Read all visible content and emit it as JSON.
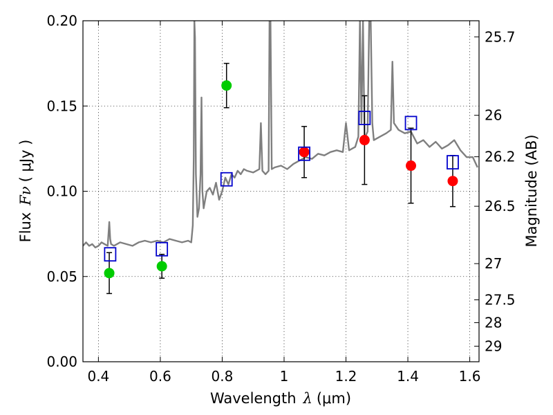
{
  "chart_data": {
    "type": "scatter",
    "title": "",
    "xlabel_text": "Wavelength",
    "xlabel_symbol": "λ",
    "xlabel_unit": "(μm)",
    "ylabel_text": "Flux",
    "ylabel_symbol": "Fν",
    "ylabel_unit": "( μJy )",
    "y2label": "Magnitude (AB)",
    "xlim": [
      0.35,
      1.63
    ],
    "ylim": [
      0.0,
      0.2
    ],
    "xticks": [
      {
        "value": 0.4,
        "label": "0.4"
      },
      {
        "value": 0.6,
        "label": "0.6"
      },
      {
        "value": 0.8,
        "label": "0.8"
      },
      {
        "value": 1.0,
        "label": "1"
      },
      {
        "value": 1.2,
        "label": "1.2"
      },
      {
        "value": 1.4,
        "label": "1.4"
      },
      {
        "value": 1.6,
        "label": "1.6"
      }
    ],
    "yticks": [
      {
        "value": 0.0,
        "label": "0.00"
      },
      {
        "value": 0.05,
        "label": "0.05"
      },
      {
        "value": 0.1,
        "label": "0.10"
      },
      {
        "value": 0.15,
        "label": "0.15"
      },
      {
        "value": 0.2,
        "label": "0.20"
      }
    ],
    "y2ticks": [
      {
        "mag": 25.7,
        "label": "25.7"
      },
      {
        "mag": 26.0,
        "label": "26"
      },
      {
        "mag": 26.2,
        "label": "26.2"
      },
      {
        "mag": 26.5,
        "label": "26.5"
      },
      {
        "mag": 27.0,
        "label": "27"
      },
      {
        "mag": 27.5,
        "label": "27.5"
      },
      {
        "mag": 28.0,
        "label": "28"
      },
      {
        "mag": 29.0,
        "label": "29"
      }
    ],
    "grid": true,
    "series": [
      {
        "name": "model spectrum",
        "kind": "line",
        "color": "#7f7f7f",
        "x": [
          0.35,
          0.36,
          0.37,
          0.38,
          0.39,
          0.4,
          0.41,
          0.42,
          0.43,
          0.435,
          0.438,
          0.441,
          0.45,
          0.47,
          0.49,
          0.51,
          0.53,
          0.55,
          0.57,
          0.59,
          0.61,
          0.63,
          0.65,
          0.67,
          0.69,
          0.7,
          0.705,
          0.708,
          0.71,
          0.712,
          0.715,
          0.72,
          0.725,
          0.73,
          0.733,
          0.736,
          0.74,
          0.745,
          0.75,
          0.76,
          0.77,
          0.78,
          0.79,
          0.8,
          0.81,
          0.82,
          0.83,
          0.84,
          0.85,
          0.86,
          0.87,
          0.88,
          0.9,
          0.92,
          0.925,
          0.93,
          0.94,
          0.95,
          0.953,
          0.956,
          0.96,
          0.97,
          0.99,
          1.01,
          1.03,
          1.05,
          1.07,
          1.09,
          1.11,
          1.13,
          1.15,
          1.17,
          1.19,
          1.2,
          1.21,
          1.23,
          1.24,
          1.245,
          1.25,
          1.255,
          1.26,
          1.27,
          1.275,
          1.28,
          1.285,
          1.29,
          1.31,
          1.33,
          1.345,
          1.35,
          1.355,
          1.37,
          1.39,
          1.41,
          1.43,
          1.45,
          1.47,
          1.49,
          1.51,
          1.53,
          1.55,
          1.57,
          1.59,
          1.61,
          1.625
        ],
        "y": [
          0.068,
          0.07,
          0.068,
          0.069,
          0.067,
          0.068,
          0.07,
          0.069,
          0.068,
          0.082,
          0.072,
          0.069,
          0.068,
          0.07,
          0.069,
          0.068,
          0.07,
          0.071,
          0.07,
          0.071,
          0.07,
          0.072,
          0.071,
          0.07,
          0.071,
          0.07,
          0.08,
          0.12,
          0.2,
          0.19,
          0.11,
          0.085,
          0.09,
          0.11,
          0.155,
          0.1,
          0.09,
          0.095,
          0.1,
          0.102,
          0.098,
          0.105,
          0.095,
          0.1,
          0.108,
          0.104,
          0.11,
          0.108,
          0.112,
          0.11,
          0.113,
          0.112,
          0.111,
          0.113,
          0.14,
          0.112,
          0.11,
          0.112,
          0.2,
          0.2,
          0.113,
          0.114,
          0.115,
          0.113,
          0.116,
          0.118,
          0.12,
          0.119,
          0.122,
          0.121,
          0.123,
          0.124,
          0.123,
          0.14,
          0.124,
          0.126,
          0.132,
          0.2,
          0.14,
          0.2,
          0.131,
          0.135,
          0.2,
          0.2,
          0.14,
          0.13,
          0.132,
          0.134,
          0.136,
          0.176,
          0.14,
          0.136,
          0.134,
          0.135,
          0.128,
          0.13,
          0.126,
          0.129,
          0.125,
          0.127,
          0.13,
          0.124,
          0.12,
          0.12,
          0.114
        ]
      },
      {
        "name": "green observations",
        "kind": "points",
        "color": "#00cc00",
        "points": [
          {
            "x": 0.435,
            "y": 0.052,
            "err": 0.012
          },
          {
            "x": 0.605,
            "y": 0.056,
            "err": 0.007
          },
          {
            "x": 0.814,
            "y": 0.162,
            "err": 0.013
          }
        ]
      },
      {
        "name": "red observations",
        "kind": "points",
        "color": "#ff0000",
        "points": [
          {
            "x": 1.065,
            "y": 0.123,
            "err": 0.015
          },
          {
            "x": 1.26,
            "y": 0.13,
            "err": 0.026
          },
          {
            "x": 1.41,
            "y": 0.115,
            "err": 0.022
          },
          {
            "x": 1.545,
            "y": 0.106,
            "err": 0.015
          }
        ]
      },
      {
        "name": "model photometry",
        "kind": "squares",
        "color": "#0000cc",
        "points": [
          {
            "x": 0.438,
            "y": 0.063
          },
          {
            "x": 0.605,
            "y": 0.066
          },
          {
            "x": 0.814,
            "y": 0.107
          },
          {
            "x": 1.065,
            "y": 0.122
          },
          {
            "x": 1.26,
            "y": 0.143
          },
          {
            "x": 1.41,
            "y": 0.14
          },
          {
            "x": 1.545,
            "y": 0.117
          }
        ]
      }
    ]
  }
}
